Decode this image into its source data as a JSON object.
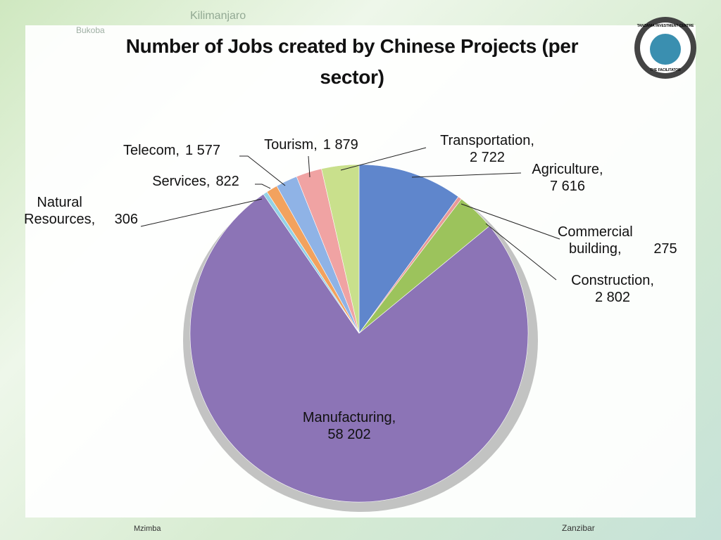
{
  "chart_data": {
    "type": "pie",
    "title": "Number of Jobs created by Chinese Projects (per sector)",
    "categories": [
      "Agriculture,",
      "Commercial building,",
      "Construction,",
      "Manufacturing,",
      "Natural Resources,",
      "Services,",
      "Telecom,",
      "Tourism,",
      "Transportation,"
    ],
    "values": [
      7616,
      275,
      2802,
      58202,
      306,
      822,
      1577,
      1879,
      2722
    ],
    "value_labels": [
      "7 616",
      "275",
      "2 802",
      "58 202",
      "306",
      "822",
      "1 577",
      "1 879",
      "2 722"
    ],
    "colors": [
      "#5f86cc",
      "#e99a98",
      "#9cc35c",
      "#8c74b6",
      "#93d2e6",
      "#f2a25e",
      "#8fb3e6",
      "#f0a3a3",
      "#c9e08c"
    ]
  },
  "logo": {
    "top": "TANZANIA INVESTMENT CENTRE",
    "bottom": "THE FACILITATOR"
  },
  "background": {
    "labels": [
      "Kilimanjaro",
      "Bukoba",
      "Zanzibar",
      "Mzimba"
    ]
  }
}
